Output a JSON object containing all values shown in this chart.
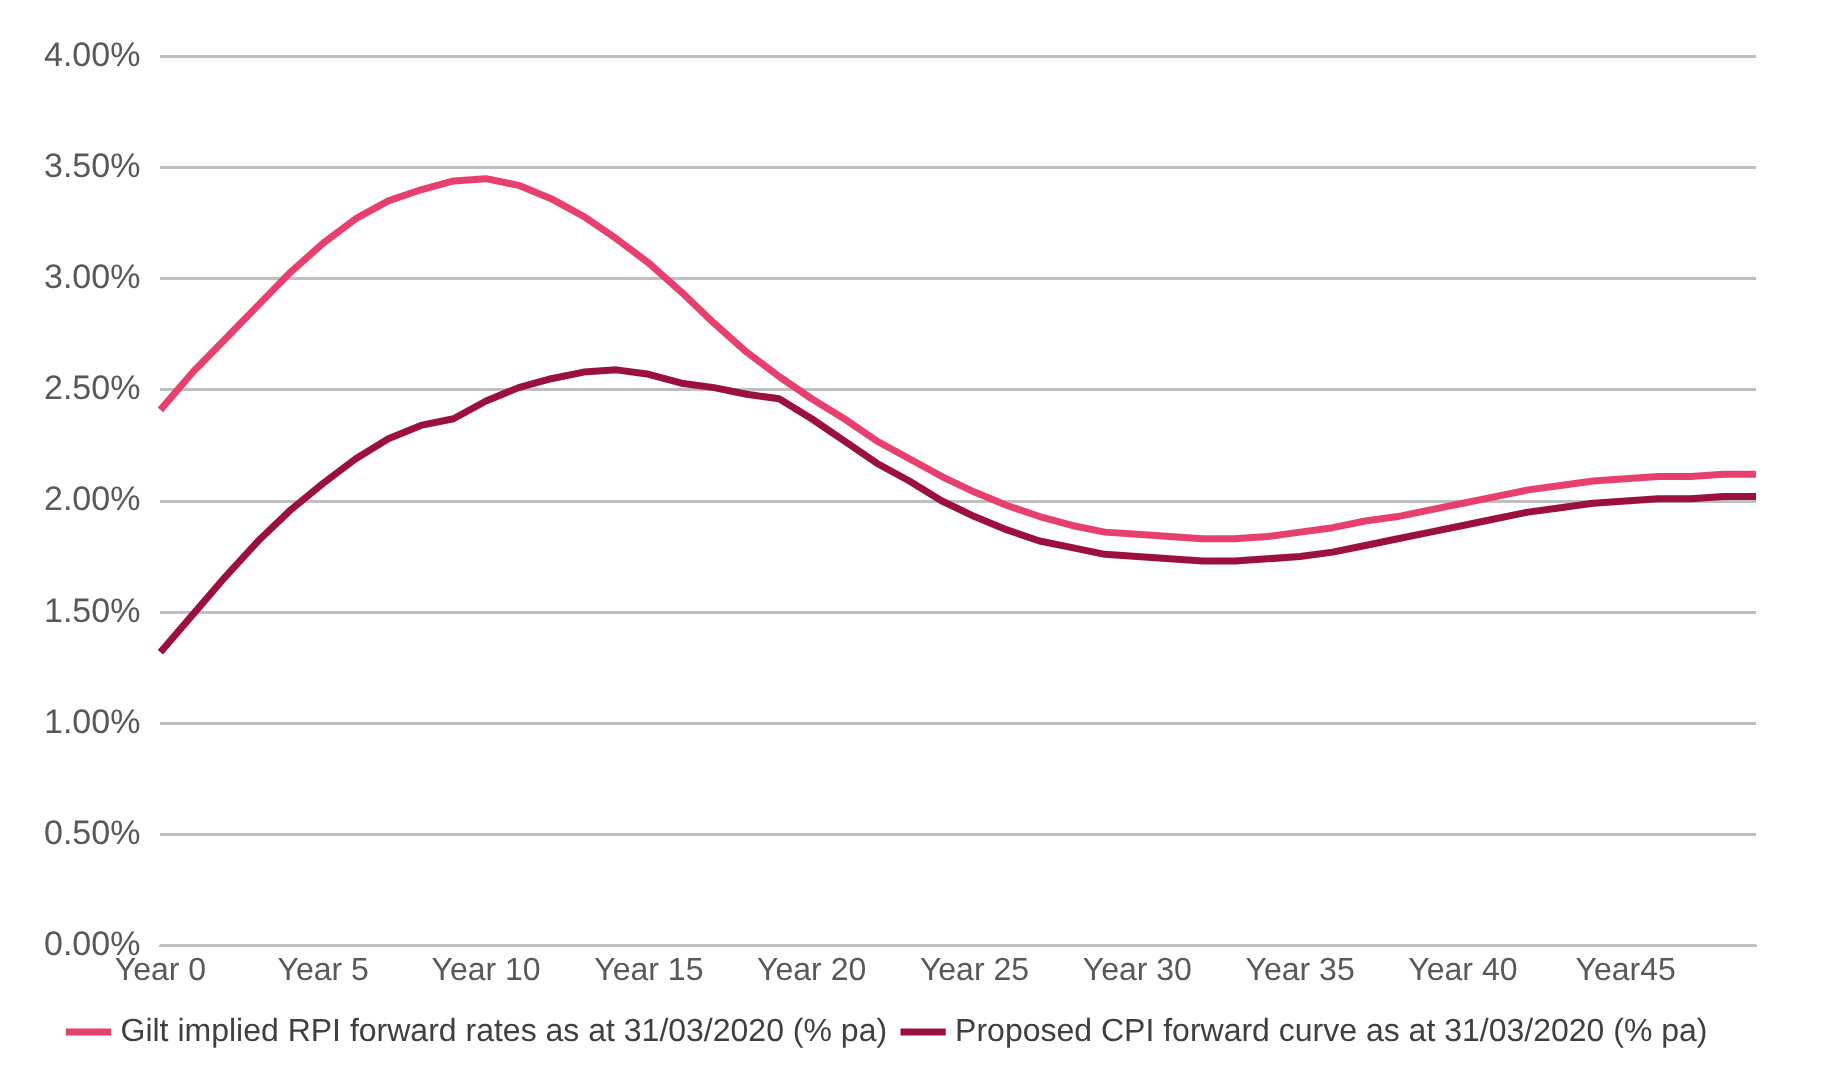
{
  "chart_data": {
    "type": "line",
    "categories": [
      "Year 0",
      null,
      null,
      null,
      null,
      "Year 5",
      null,
      null,
      null,
      null,
      "Year 10",
      null,
      null,
      null,
      null,
      "Year 15",
      null,
      null,
      null,
      null,
      "Year 20",
      null,
      null,
      null,
      null,
      "Year 25",
      null,
      null,
      null,
      null,
      "Year 30",
      null,
      null,
      null,
      null,
      "Year 35",
      null,
      null,
      null,
      null,
      "Year 40",
      null,
      null,
      null,
      null,
      "Year45",
      null,
      null,
      null,
      null
    ],
    "series": [
      {
        "name": "Gilt implied RPI forward rates as at 31/03/2020 (% pa)",
        "color": "#e8406e",
        "values": [
          2.41,
          2.58,
          2.73,
          2.88,
          3.03,
          3.16,
          3.27,
          3.35,
          3.4,
          3.44,
          3.45,
          3.42,
          3.36,
          3.28,
          3.18,
          3.07,
          2.94,
          2.8,
          2.67,
          2.56,
          2.46,
          2.37,
          2.27,
          2.19,
          2.11,
          2.04,
          1.98,
          1.93,
          1.89,
          1.86,
          1.85,
          1.84,
          1.83,
          1.83,
          1.84,
          1.86,
          1.88,
          1.91,
          1.93,
          1.96,
          1.99,
          2.02,
          2.05,
          2.07,
          2.09,
          2.1,
          2.11,
          2.11,
          2.12,
          2.12
        ]
      },
      {
        "name": "Proposed CPI forward curve as at 31/03/2020 (% pa)",
        "color": "#9b1040",
        "values": [
          1.32,
          1.49,
          1.66,
          1.82,
          1.96,
          2.08,
          2.19,
          2.28,
          2.34,
          2.37,
          2.45,
          2.51,
          2.55,
          2.58,
          2.59,
          2.57,
          2.53,
          2.51,
          2.48,
          2.46,
          2.37,
          2.27,
          2.17,
          2.09,
          2.0,
          1.93,
          1.87,
          1.82,
          1.79,
          1.76,
          1.75,
          1.74,
          1.73,
          1.73,
          1.74,
          1.75,
          1.77,
          1.8,
          1.83,
          1.86,
          1.89,
          1.92,
          1.95,
          1.97,
          1.99,
          2.0,
          2.01,
          2.01,
          2.02,
          2.02
        ]
      }
    ],
    "ylim": [
      0,
      4
    ],
    "yticks": [
      {
        "value": 0,
        "label": "0.00%"
      },
      {
        "value": 0.5,
        "label": "0.50%"
      },
      {
        "value": 1,
        "label": "1.00%"
      },
      {
        "value": 1.5,
        "label": "1.50%"
      },
      {
        "value": 2,
        "label": "2.00%"
      },
      {
        "value": 2.5,
        "label": "2.50%"
      },
      {
        "value": 3,
        "label": "3.00%"
      },
      {
        "value": 3.5,
        "label": "3.50%"
      },
      {
        "value": 4,
        "label": "4.00%"
      }
    ],
    "grid": "y",
    "legend": "bottom",
    "marker": "none",
    "line_style": "solid"
  }
}
